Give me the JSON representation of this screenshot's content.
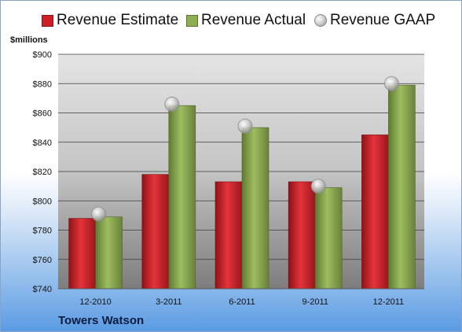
{
  "legend": {
    "estimate": "Revenue Estimate",
    "actual": "Revenue Actual",
    "gaap": "Revenue GAAP"
  },
  "unit_label": "$millions",
  "company": "Towers Watson",
  "colors": {
    "estimate": "#cc1f26",
    "actual": "#8fae52",
    "gaap": "#b8b8b8"
  },
  "chart_data": {
    "type": "bar",
    "categories": [
      "12-2010",
      "3-2011",
      "6-2011",
      "9-2011",
      "12-2011"
    ],
    "series": [
      {
        "name": "Revenue Estimate",
        "values": [
          788,
          818,
          813,
          813,
          845
        ]
      },
      {
        "name": "Revenue Actual",
        "values": [
          789,
          865,
          850,
          809,
          879
        ]
      },
      {
        "name": "Revenue GAAP",
        "values": [
          791,
          866,
          851,
          810,
          880
        ],
        "marker": "circle"
      }
    ],
    "ylabel": "$millions",
    "ylim": [
      740,
      900
    ],
    "yticks": [
      "$740",
      "$760",
      "$780",
      "$800",
      "$820",
      "$840",
      "$860",
      "$880",
      "$900"
    ],
    "grid": true,
    "legend_position": "top"
  }
}
